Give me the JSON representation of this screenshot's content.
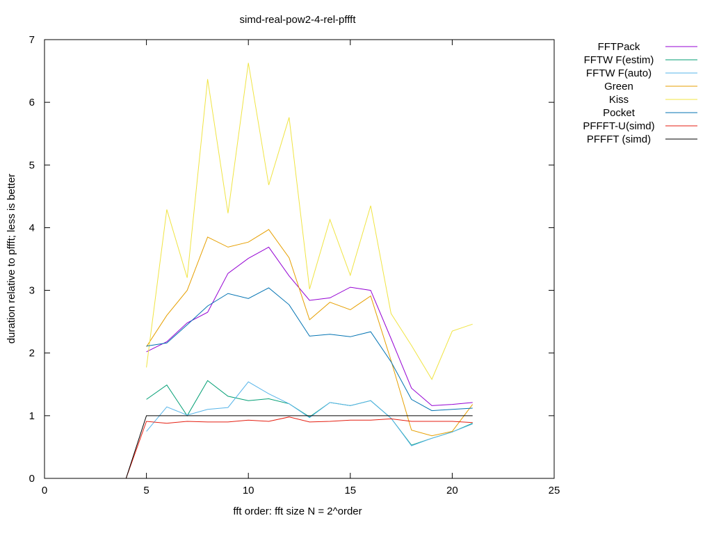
{
  "chart_data": {
    "type": "line",
    "title": "simd-real-pow2-4-rel-pffft",
    "xlabel": "fft order: fft size N = 2^order",
    "ylabel": "duration relative to pffft; less is better",
    "xlim": [
      0,
      25
    ],
    "ylim": [
      0,
      7
    ],
    "x_ticks": [
      0,
      5,
      10,
      15,
      20,
      25
    ],
    "y_ticks": [
      0,
      1,
      2,
      3,
      4,
      5,
      6,
      7
    ],
    "grid": false,
    "legend_position": "outside-right-top",
    "series": [
      {
        "name": "FFTPack",
        "color": "#9400d3",
        "x": [
          5,
          6,
          7,
          8,
          9,
          10,
          11,
          12,
          13,
          14,
          15,
          16,
          17,
          18,
          19,
          20,
          21
        ],
        "values": [
          2.02,
          2.18,
          2.48,
          2.65,
          3.27,
          3.51,
          3.69,
          3.23,
          2.84,
          2.88,
          3.05,
          3.0,
          2.23,
          1.44,
          1.16,
          1.18,
          1.21
        ]
      },
      {
        "name": "FFTW F(estim)",
        "color": "#009e73",
        "x": [
          5,
          6,
          7,
          8,
          9,
          10,
          11,
          12,
          13,
          14,
          15,
          16,
          17,
          18,
          19,
          20,
          21
        ],
        "values": [
          1.26,
          1.49,
          1.0,
          1.56,
          1.31,
          1.24,
          1.27,
          1.19,
          0.98,
          1.21,
          1.16,
          1.24,
          0.96,
          0.53,
          0.64,
          0.74,
          0.88
        ]
      },
      {
        "name": "FFTW F(auto)",
        "color": "#56b4e9",
        "x": [
          5,
          6,
          7,
          8,
          9,
          10,
          11,
          12,
          13,
          14,
          15,
          16,
          17,
          18,
          19,
          20,
          21
        ],
        "values": [
          0.75,
          1.14,
          1.01,
          1.1,
          1.13,
          1.54,
          1.35,
          1.19,
          0.97,
          1.21,
          1.16,
          1.24,
          0.96,
          0.52,
          0.64,
          0.74,
          0.87
        ]
      },
      {
        "name": "Green",
        "color": "#e69f00",
        "x": [
          5,
          6,
          7,
          8,
          9,
          10,
          11,
          12,
          13,
          14,
          15,
          16,
          17,
          18,
          19,
          20,
          21
        ],
        "values": [
          2.1,
          2.6,
          3.0,
          3.85,
          3.69,
          3.77,
          3.97,
          3.52,
          2.53,
          2.81,
          2.69,
          2.91,
          1.88,
          0.77,
          0.68,
          0.75,
          1.18
        ]
      },
      {
        "name": "Kiss",
        "color": "#f0e442",
        "x": [
          5,
          6,
          7,
          8,
          9,
          10,
          11,
          12,
          13,
          14,
          15,
          16,
          17,
          18,
          19,
          20,
          21
        ],
        "values": [
          1.77,
          4.29,
          3.2,
          6.37,
          4.23,
          6.63,
          4.68,
          5.76,
          3.02,
          4.13,
          3.24,
          4.35,
          2.63,
          2.12,
          1.58,
          2.35,
          2.46
        ]
      },
      {
        "name": "Pocket",
        "color": "#0072b2",
        "x": [
          5,
          6,
          7,
          8,
          9,
          10,
          11,
          12,
          13,
          14,
          15,
          16,
          17,
          18,
          19,
          20,
          21
        ],
        "values": [
          2.11,
          2.16,
          2.45,
          2.75,
          2.95,
          2.87,
          3.04,
          2.77,
          2.27,
          2.3,
          2.26,
          2.34,
          1.86,
          1.26,
          1.08,
          1.1,
          1.12
        ]
      },
      {
        "name": "PFFFT-U(simd)",
        "color": "#e51e10",
        "x": [
          4,
          5,
          6,
          7,
          8,
          9,
          10,
          11,
          12,
          13,
          14,
          15,
          16,
          17,
          18,
          19,
          20,
          21
        ],
        "values": [
          0.0,
          0.91,
          0.88,
          0.91,
          0.9,
          0.9,
          0.93,
          0.91,
          0.98,
          0.9,
          0.91,
          0.93,
          0.93,
          0.95,
          0.91,
          0.91,
          0.91,
          0.89
        ]
      },
      {
        "name": "PFFFT (simd)",
        "color": "#000000",
        "x": [
          4,
          5,
          6,
          7,
          8,
          9,
          10,
          11,
          12,
          13,
          14,
          15,
          16,
          17,
          18,
          19,
          20,
          21
        ],
        "values": [
          0.0,
          1.0,
          1.0,
          1.0,
          1.0,
          1.0,
          1.0,
          1.0,
          1.0,
          1.0,
          1.0,
          1.0,
          1.0,
          1.0,
          1.0,
          1.0,
          1.0,
          1.0
        ]
      }
    ]
  }
}
